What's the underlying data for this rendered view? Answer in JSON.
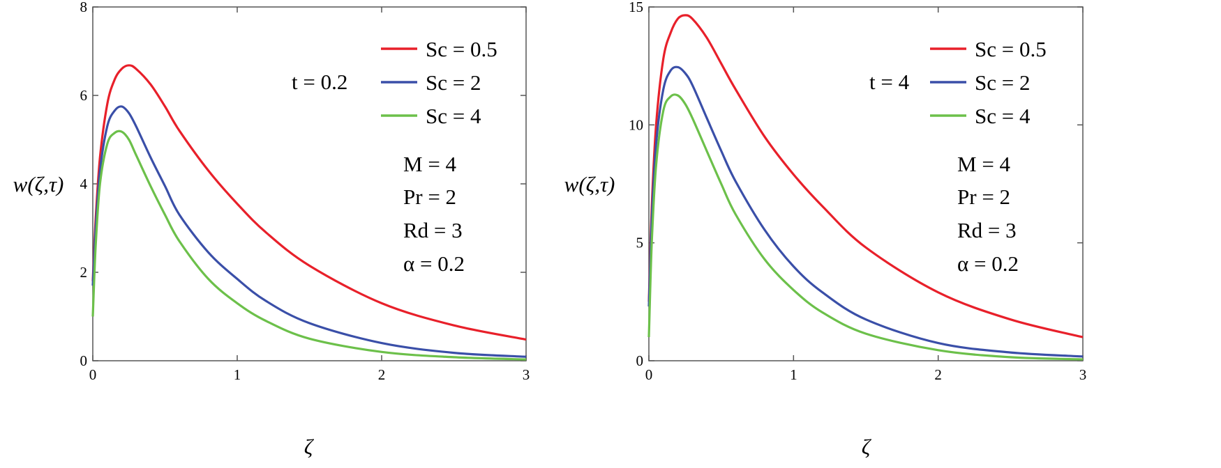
{
  "chart_data": [
    {
      "type": "line",
      "title": "",
      "xlabel": "ζ",
      "ylabel": "w(ζ,τ)",
      "xlim": [
        0,
        3
      ],
      "ylim": [
        0,
        8
      ],
      "xticks": [
        "0",
        "1",
        "2",
        "3"
      ],
      "yticks": [
        "0",
        "2",
        "4",
        "6",
        "8"
      ],
      "annotation": "t = 0.2",
      "params": [
        "M = 4",
        "Pr = 2",
        "Rd = 3",
        "α = 0.2"
      ],
      "series": [
        {
          "name": "Sc = 0.5",
          "color": "#e8202a",
          "x": [
            0,
            0.02,
            0.05,
            0.1,
            0.15,
            0.2,
            0.25,
            0.3,
            0.4,
            0.5,
            0.6,
            0.8,
            1.0,
            1.2,
            1.5,
            2.0,
            2.5,
            3.0
          ],
          "y": [
            1.8,
            3.2,
            4.6,
            5.8,
            6.35,
            6.6,
            6.68,
            6.6,
            6.25,
            5.75,
            5.2,
            4.3,
            3.55,
            2.9,
            2.15,
            1.3,
            0.8,
            0.48
          ]
        },
        {
          "name": "Sc = 2",
          "color": "#3a4fa8",
          "x": [
            0,
            0.02,
            0.05,
            0.1,
            0.15,
            0.2,
            0.25,
            0.3,
            0.4,
            0.5,
            0.6,
            0.8,
            1.0,
            1.2,
            1.5,
            2.0,
            2.5,
            3.0
          ],
          "y": [
            1.7,
            3.0,
            4.3,
            5.3,
            5.65,
            5.75,
            5.6,
            5.3,
            4.6,
            3.95,
            3.3,
            2.45,
            1.85,
            1.35,
            0.85,
            0.4,
            0.18,
            0.09
          ]
        },
        {
          "name": "Sc = 4",
          "color": "#6cc04a",
          "x": [
            0,
            0.02,
            0.05,
            0.1,
            0.15,
            0.2,
            0.25,
            0.3,
            0.4,
            0.5,
            0.6,
            0.8,
            1.0,
            1.2,
            1.5,
            2.0,
            2.5,
            3.0
          ],
          "y": [
            1.0,
            2.6,
            4.0,
            4.9,
            5.15,
            5.18,
            5.0,
            4.65,
            3.95,
            3.3,
            2.7,
            1.85,
            1.3,
            0.9,
            0.5,
            0.2,
            0.08,
            0.03
          ]
        }
      ]
    },
    {
      "type": "line",
      "title": "",
      "xlabel": "ζ",
      "ylabel": "w(ζ,τ)",
      "xlim": [
        0,
        3
      ],
      "ylim": [
        0,
        15
      ],
      "xticks": [
        "0",
        "1",
        "2",
        "3"
      ],
      "yticks": [
        "0",
        "5",
        "10",
        "15"
      ],
      "annotation": "t = 4",
      "params": [
        "M = 4",
        "Pr = 2",
        "Rd = 3",
        "α = 0.2"
      ],
      "series": [
        {
          "name": "Sc = 0.5",
          "color": "#e8202a",
          "x": [
            0,
            0.02,
            0.05,
            0.1,
            0.15,
            0.2,
            0.25,
            0.3,
            0.4,
            0.5,
            0.6,
            0.8,
            1.0,
            1.2,
            1.5,
            2.0,
            2.5,
            3.0
          ],
          "y": [
            2.5,
            6.5,
            10.0,
            12.8,
            13.9,
            14.5,
            14.65,
            14.5,
            13.7,
            12.6,
            11.5,
            9.5,
            7.9,
            6.55,
            4.8,
            2.9,
            1.75,
            1.0
          ]
        },
        {
          "name": "Sc = 2",
          "color": "#3a4fa8",
          "x": [
            0,
            0.02,
            0.05,
            0.1,
            0.15,
            0.2,
            0.25,
            0.3,
            0.4,
            0.5,
            0.6,
            0.8,
            1.0,
            1.2,
            1.5,
            2.0,
            2.5,
            3.0
          ],
          "y": [
            2.3,
            6.0,
            9.2,
            11.5,
            12.3,
            12.45,
            12.2,
            11.7,
            10.3,
            8.9,
            7.6,
            5.55,
            4.0,
            2.9,
            1.75,
            0.75,
            0.35,
            0.18
          ]
        },
        {
          "name": "Sc = 4",
          "color": "#6cc04a",
          "x": [
            0,
            0.02,
            0.05,
            0.1,
            0.15,
            0.2,
            0.25,
            0.3,
            0.4,
            0.5,
            0.6,
            0.8,
            1.0,
            1.2,
            1.5,
            2.0,
            2.5,
            3.0
          ],
          "y": [
            1.0,
            5.0,
            8.3,
            10.6,
            11.2,
            11.25,
            10.9,
            10.3,
            8.9,
            7.5,
            6.2,
            4.3,
            3.0,
            2.05,
            1.15,
            0.45,
            0.15,
            0.06
          ]
        }
      ]
    }
  ]
}
